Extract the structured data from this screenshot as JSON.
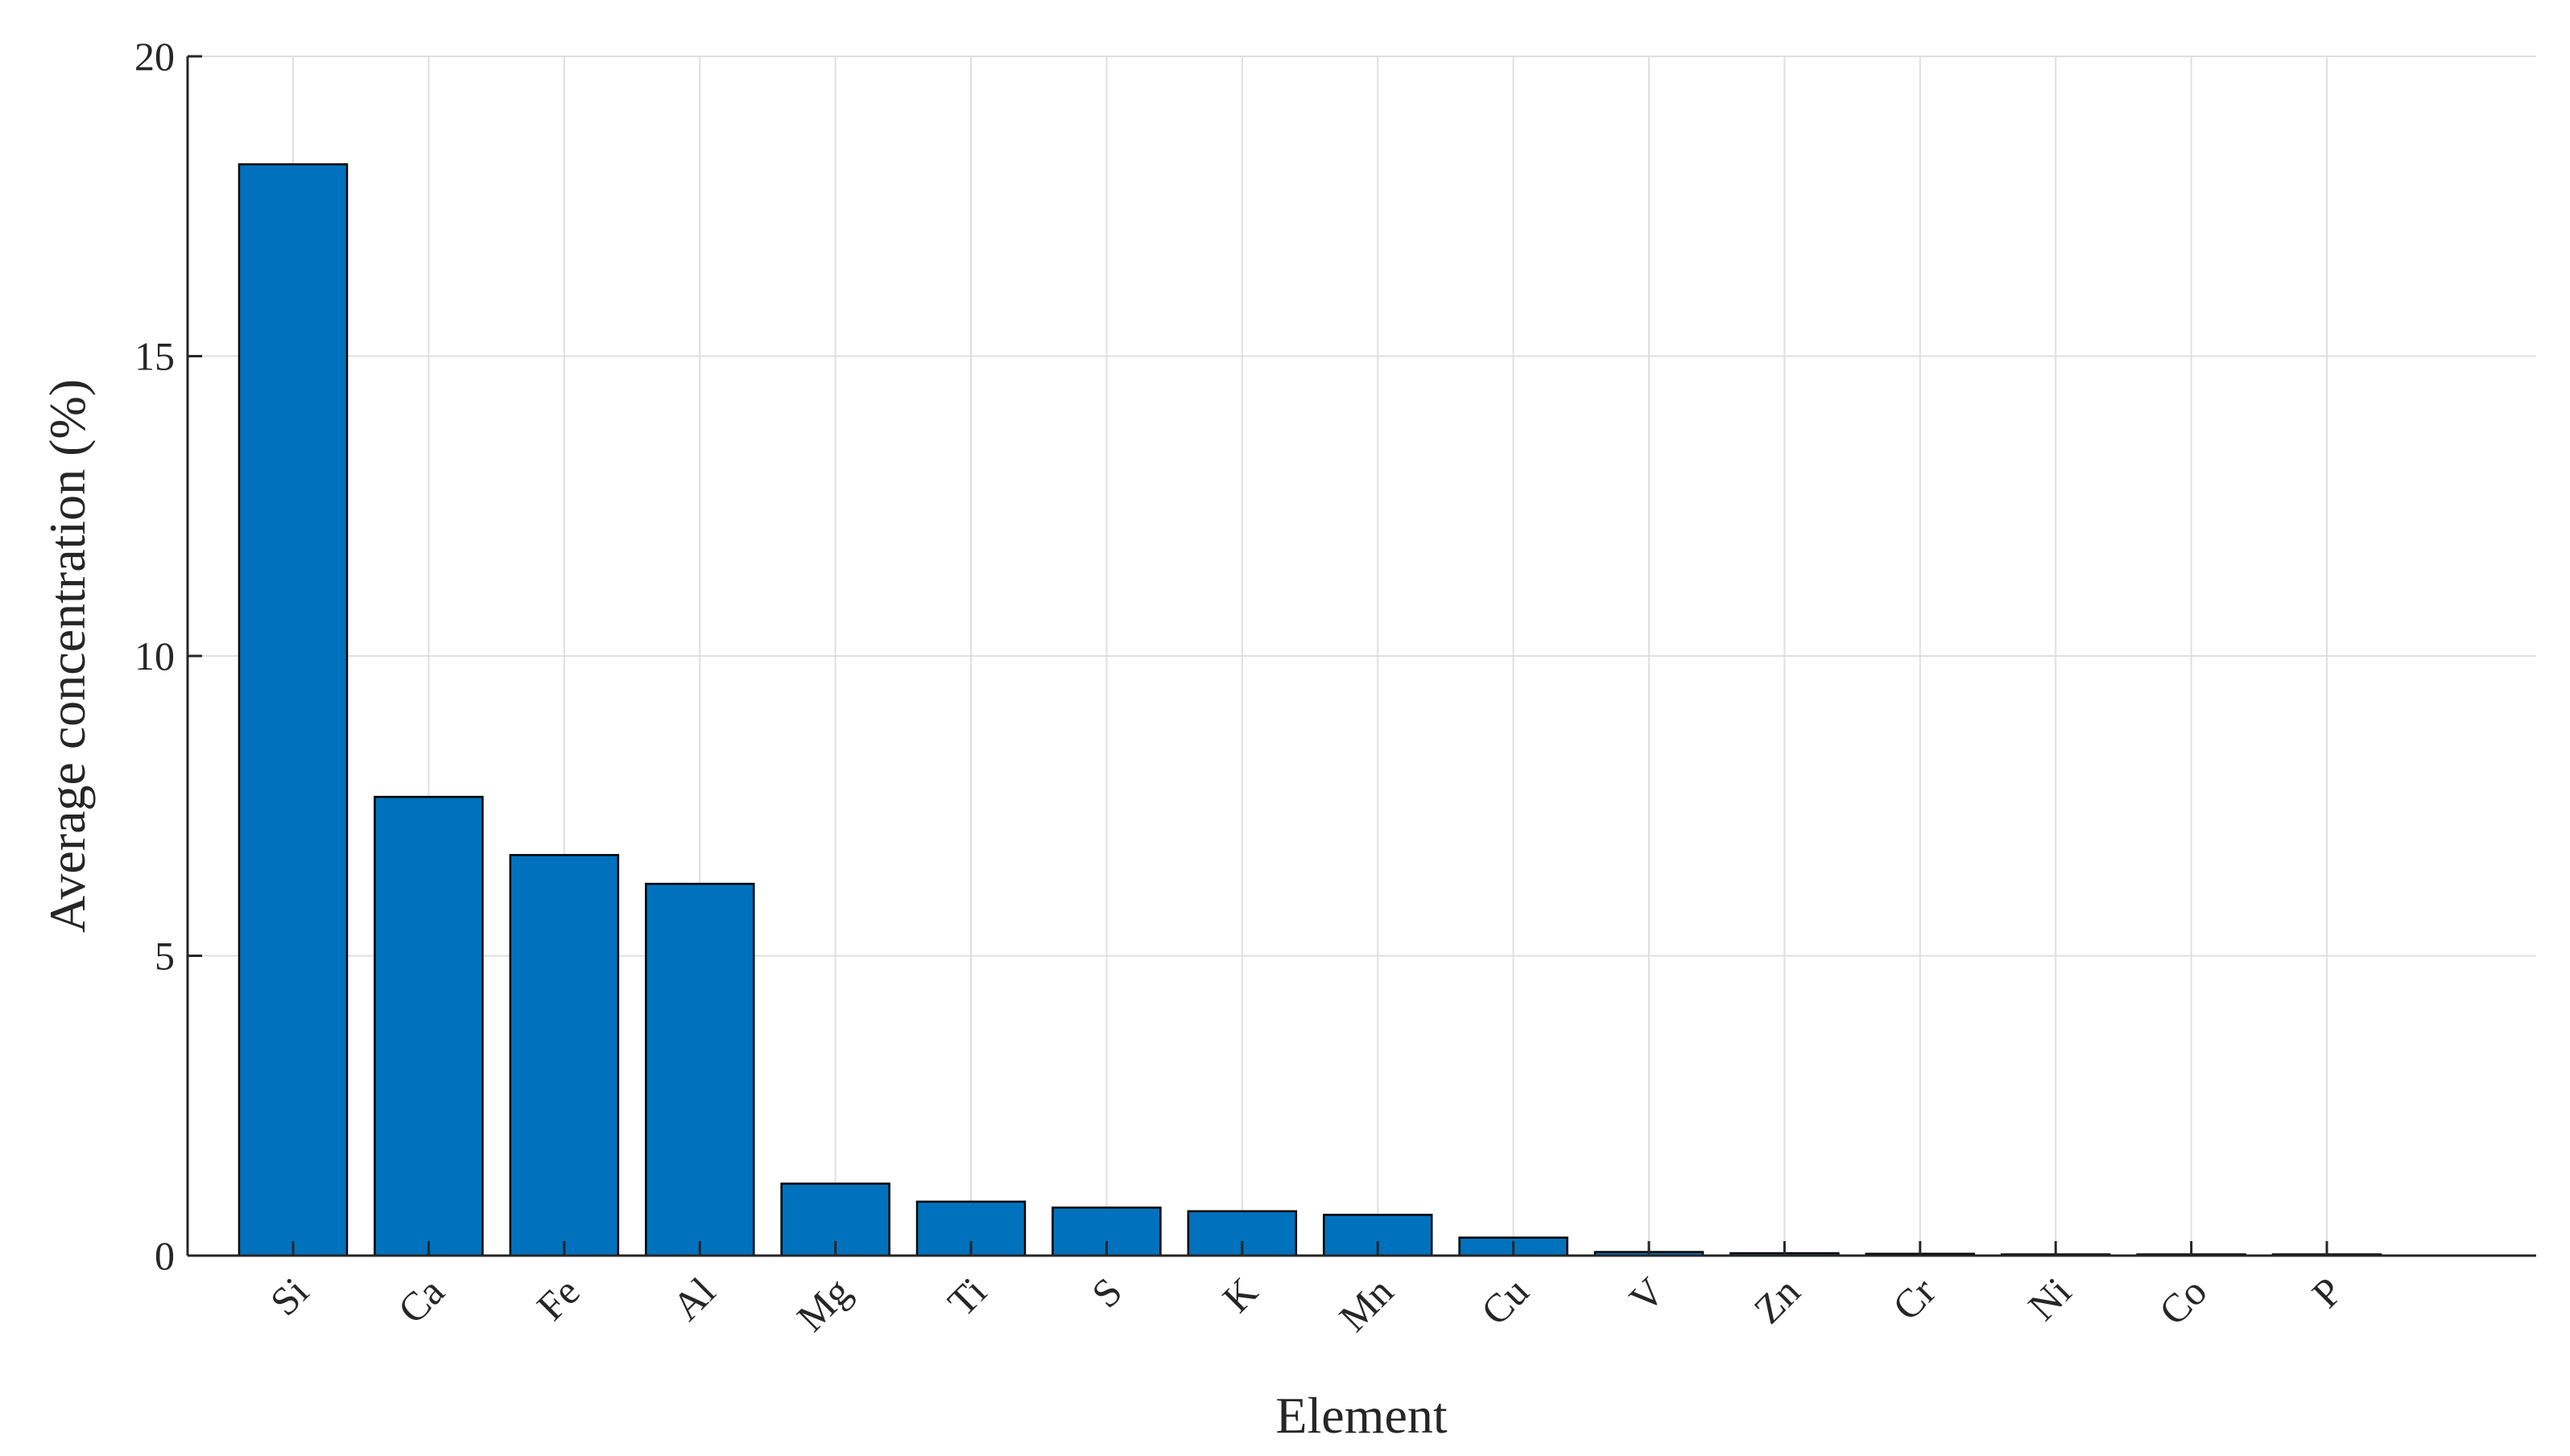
{
  "chart_data": {
    "type": "bar",
    "xlabel": "Element",
    "ylabel": "Average concentration (%)",
    "ylim": [
      0,
      20
    ],
    "yticks": [
      "0",
      "5",
      "10",
      "15",
      "20"
    ],
    "grid": true,
    "categories": [
      "Si",
      "Ca",
      "Fe",
      "Al",
      "Mg",
      "Ti",
      "S",
      "K",
      "Mn",
      "Cu",
      "V",
      "Zn",
      "Cr",
      "Ni",
      "Co",
      "P"
    ],
    "values": [
      18.2,
      7.65,
      6.68,
      6.2,
      1.2,
      0.9,
      0.8,
      0.74,
      0.68,
      0.3,
      0.06,
      0.04,
      0.03,
      0.02,
      0.02,
      0.02
    ],
    "bar_color": "#0072bd"
  }
}
